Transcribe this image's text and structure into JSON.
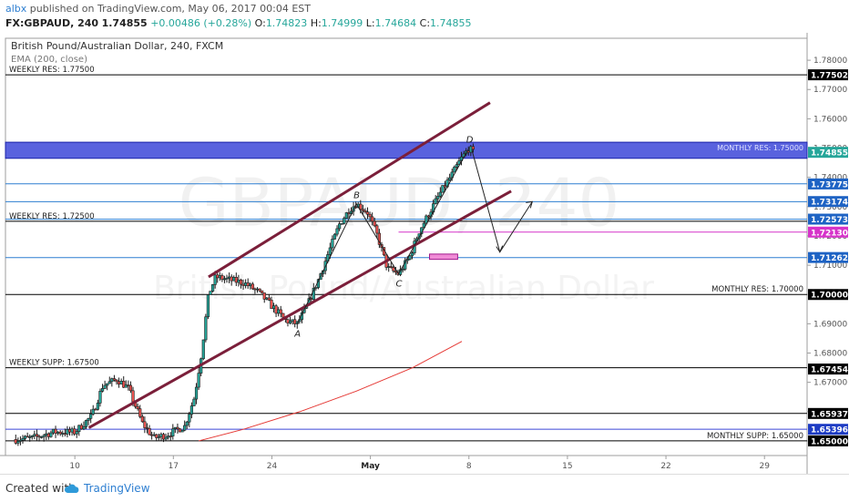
{
  "header": {
    "user": "albx",
    "published_text": "published on TradingView.com, May 06, 2017 00:04 EST",
    "symbol": "FX:GBPAUD, 240",
    "last": "1.74855",
    "change": "+0.00486 (+0.28%)",
    "o_label": "O:",
    "o_value": "1.74823",
    "h_label": "H:",
    "h_value": "1.74999",
    "l_label": "L:",
    "l_value": "1.74684",
    "c_label": "C:",
    "c_value": "1.74855"
  },
  "footer": {
    "created_label": "Created with",
    "brand": "TradingView"
  },
  "colors": {
    "up": "#26a69a",
    "down": "#ef5350",
    "candle": "#1b1b1b",
    "channel": "#7b1f3a",
    "zone": "#3c46d8",
    "ema": "#e53935",
    "pink": "#d633c9"
  },
  "icons": {
    "brand_icon": "tradingview-cloud-icon"
  },
  "chart_data": {
    "type": "candlestick",
    "title": "British Pound/Australian Dollar, 240, FXCM",
    "indicator_label": "EMA (200, close)",
    "watermark_symbol": "GBPAUD, 240",
    "watermark_name": "British Pound/Australian Dollar",
    "ylim": [
      1.645,
      1.7875
    ],
    "y_ticks": [
      1.65,
      1.66,
      1.67,
      1.68,
      1.69,
      1.7,
      1.71,
      1.72,
      1.73,
      1.74,
      1.75,
      1.76,
      1.77,
      1.78
    ],
    "y_tick_labels": [
      "1.65000",
      "1.66000",
      "1.67000",
      "1.68000",
      "1.69000",
      "1.70000",
      "1.71000",
      "1.72000",
      "1.73000",
      "1.74000",
      "1.75000",
      "1.76000",
      "1.77000",
      "1.78000"
    ],
    "x_range_days": [
      5.2,
      32.2
    ],
    "x_ticks": [
      {
        "day": 10,
        "label": "10"
      },
      {
        "day": 17,
        "label": "17"
      },
      {
        "day": 24,
        "label": "24"
      },
      {
        "day": 31,
        "label": "May"
      },
      {
        "day": 38,
        "label": "8"
      },
      {
        "day": 45,
        "label": "15"
      },
      {
        "day": 52,
        "label": "22"
      },
      {
        "day": 59,
        "label": "29"
      }
    ],
    "x_axis_note": "days counted from Apr 1, 2017 (May 1 = 31)",
    "price_path": [
      [
        5.8,
        1.6505
      ],
      [
        7.0,
        1.651
      ],
      [
        8.5,
        1.653
      ],
      [
        10.0,
        1.653
      ],
      [
        11.2,
        1.6585
      ],
      [
        12.0,
        1.669
      ],
      [
        13.0,
        1.671
      ],
      [
        13.8,
        1.668
      ],
      [
        14.8,
        1.656
      ],
      [
        15.6,
        1.651
      ],
      [
        16.5,
        1.652
      ],
      [
        17.8,
        1.655
      ],
      [
        18.5,
        1.665
      ],
      [
        19.0,
        1.68
      ],
      [
        19.5,
        1.7
      ],
      [
        20.0,
        1.706
      ],
      [
        21.0,
        1.705
      ],
      [
        22.0,
        1.704
      ],
      [
        23.0,
        1.701
      ],
      [
        24.0,
        1.696
      ],
      [
        25.0,
        1.691
      ],
      [
        25.8,
        1.69
      ],
      [
        26.5,
        1.696
      ],
      [
        27.3,
        1.705
      ],
      [
        28.0,
        1.714
      ],
      [
        28.8,
        1.724
      ],
      [
        29.5,
        1.729
      ],
      [
        30.0,
        1.731
      ],
      [
        30.8,
        1.728
      ],
      [
        31.5,
        1.72
      ],
      [
        32.2,
        1.709
      ],
      [
        33.0,
        1.707
      ],
      [
        33.8,
        1.713
      ],
      [
        34.5,
        1.722
      ],
      [
        35.2,
        1.728
      ],
      [
        36.0,
        1.735
      ],
      [
        36.8,
        1.741
      ],
      [
        37.4,
        1.746
      ],
      [
        38.0,
        1.75
      ],
      [
        38.3,
        1.7485
      ]
    ],
    "ema200": [
      [
        18.8,
        1.65
      ],
      [
        22.0,
        1.654
      ],
      [
        26.0,
        1.66
      ],
      [
        30.0,
        1.667
      ],
      [
        34.0,
        1.675
      ],
      [
        37.5,
        1.684
      ]
    ],
    "horizontal_levels": [
      {
        "price": 1.775,
        "label": "WEEKLY RES: 1.77500",
        "side": "left",
        "color": "#000000"
      },
      {
        "price": 1.725,
        "label": "WEEKLY RES: 1.72500",
        "side": "left",
        "color": "#000000"
      },
      {
        "price": 1.7,
        "label": "MONTHLY RES: 1.70000",
        "side": "right",
        "color": "#000000"
      },
      {
        "price": 1.675,
        "label": "WEEKLY SUPP: 1.67500",
        "side": "left",
        "color": "#000000"
      },
      {
        "price": 1.65,
        "label": "MONTHLY SUPP: 1.65000",
        "side": "right",
        "color": "#000000"
      },
      {
        "price": 1.6594,
        "label": "",
        "side": "none",
        "color": "#000000"
      },
      {
        "price": 1.654,
        "label": "",
        "side": "none",
        "color": "#3c46d8"
      },
      {
        "price": 1.7378,
        "label": "",
        "side": "none",
        "color": "#2e7fd1"
      },
      {
        "price": 1.7317,
        "label": "",
        "side": "none",
        "color": "#2e7fd1"
      },
      {
        "price": 1.7257,
        "label": "",
        "side": "none",
        "color": "#2e7fd1"
      },
      {
        "price": 1.7126,
        "label": "",
        "side": "none",
        "color": "#2e7fd1"
      }
    ],
    "pink_line": {
      "price": 1.7213,
      "from_day": 33.0
    },
    "resistance_zone": {
      "low": 1.7465,
      "high": 1.752,
      "label": "MONTHLY RES: 1.75000"
    },
    "target_box": {
      "from_day": 35.2,
      "to_day": 37.2,
      "low": 1.712,
      "high": 1.7138
    },
    "channel_upper": [
      [
        19.5,
        1.706
      ],
      [
        39.5,
        1.7655
      ]
    ],
    "channel_lower": [
      [
        11.0,
        1.6545
      ],
      [
        41.0,
        1.7353
      ]
    ],
    "pattern_points": [
      {
        "label": "A",
        "day": 25.8,
        "price": 1.69
      },
      {
        "label": "B",
        "day": 30.0,
        "price": 1.731
      },
      {
        "label": "C",
        "day": 33.0,
        "price": 1.707
      },
      {
        "label": "D",
        "day": 38.0,
        "price": 1.75
      }
    ],
    "projection": [
      [
        38.2,
        1.7495
      ],
      [
        40.2,
        1.7145
      ],
      [
        42.5,
        1.7317
      ]
    ],
    "price_labels": [
      {
        "price": 1.77502,
        "text": "1.77502",
        "bg": "#000000",
        "fg": "#ffffff"
      },
      {
        "price": 1.74855,
        "text": "1.74855",
        "bg": "#26a69a",
        "fg": "#ffffff"
      },
      {
        "price": 1.73775,
        "text": "1.73775",
        "bg": "#1e63c4",
        "fg": "#ffffff"
      },
      {
        "price": 1.73174,
        "text": "1.73174",
        "bg": "#1e63c4",
        "fg": "#ffffff"
      },
      {
        "price": 1.72573,
        "text": "1.72573",
        "bg": "#1e63c4",
        "fg": "#ffffff"
      },
      {
        "price": 1.7213,
        "text": "1.72130",
        "bg": "#d633c9",
        "fg": "#ffffff"
      },
      {
        "price": 1.71262,
        "text": "1.71262",
        "bg": "#1e63c4",
        "fg": "#ffffff"
      },
      {
        "price": 1.7,
        "text": "1.70000",
        "bg": "#000000",
        "fg": "#ffffff"
      },
      {
        "price": 1.67454,
        "text": "1.67454",
        "bg": "#000000",
        "fg": "#ffffff"
      },
      {
        "price": 1.65937,
        "text": "1.65937",
        "bg": "#000000",
        "fg": "#ffffff"
      },
      {
        "price": 1.65396,
        "text": "1.65396",
        "bg": "#1e3cc4",
        "fg": "#ffffff"
      },
      {
        "price": 1.65,
        "text": "1.65000",
        "bg": "#000000",
        "fg": "#ffffff"
      }
    ]
  }
}
